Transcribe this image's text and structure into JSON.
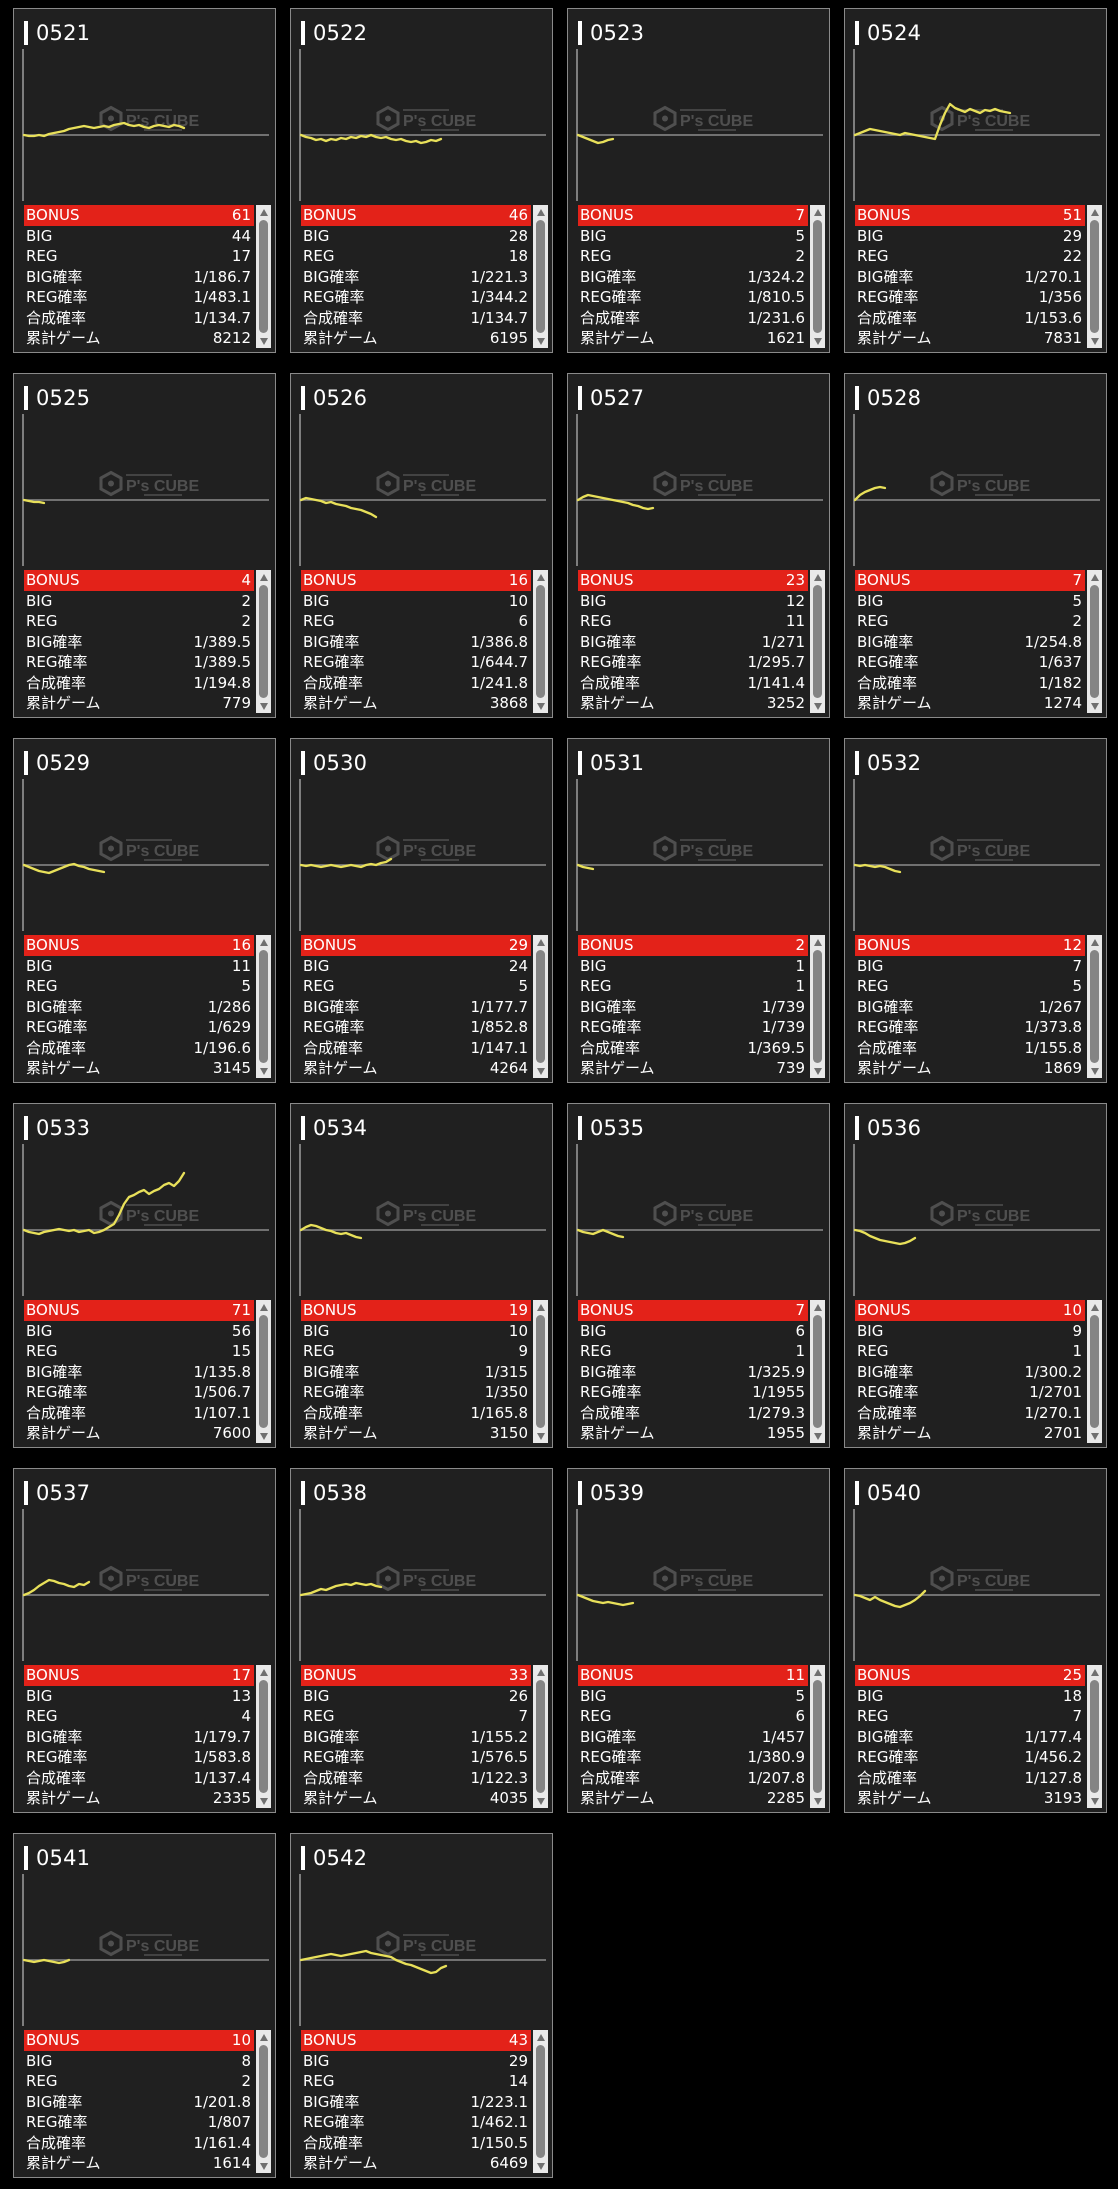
{
  "labels": {
    "bonus": "BONUS",
    "big": "BIG",
    "reg": "REG",
    "big_rate": "BIG確率",
    "reg_rate": "REG確率",
    "combined_rate": "合成確率",
    "total_games": "累計ゲーム"
  },
  "watermark": {
    "brand": "P's CUBE",
    "line_color": "#e8e05a"
  },
  "machines": [
    {
      "id": "0521",
      "bonus": "61",
      "big": "44",
      "reg": "17",
      "big_rate": "1/186.7",
      "reg_rate": "1/483.1",
      "combined_rate": "1/134.7",
      "total_games": "8212",
      "trend": [
        0,
        1,
        1,
        0,
        1,
        -1,
        -2,
        -3,
        -4,
        -6,
        -7,
        -8,
        -9,
        -8,
        -7,
        -8,
        -9,
        -8,
        -10,
        -11,
        -12,
        -10,
        -9,
        -10,
        -8,
        -7,
        -9,
        -10,
        -9,
        -8,
        -10,
        -9,
        -7
      ]
    },
    {
      "id": "0522",
      "bonus": "46",
      "big": "28",
      "reg": "18",
      "big_rate": "1/221.3",
      "reg_rate": "1/344.2",
      "combined_rate": "1/134.7",
      "total_games": "6195",
      "trend": [
        0,
        2,
        3,
        5,
        4,
        6,
        4,
        5,
        3,
        4,
        2,
        3,
        1,
        2,
        0,
        2,
        3,
        2,
        4,
        5,
        4,
        6,
        7,
        6,
        8,
        7,
        5,
        6,
        4
      ]
    },
    {
      "id": "0523",
      "bonus": "7",
      "big": "5",
      "reg": "2",
      "big_rate": "1/324.2",
      "reg_rate": "1/810.5",
      "combined_rate": "1/231.6",
      "total_games": "1621",
      "trend": [
        0,
        2,
        4,
        6,
        8,
        7,
        5,
        4
      ]
    },
    {
      "id": "0524",
      "bonus": "51",
      "big": "29",
      "reg": "22",
      "big_rate": "1/270.1",
      "reg_rate": "1/356",
      "combined_rate": "1/153.6",
      "total_games": "7831",
      "trend": [
        0,
        -2,
        -4,
        -6,
        -5,
        -4,
        -3,
        -2,
        -1,
        0,
        -2,
        -1,
        0,
        1,
        2,
        3,
        4,
        -10,
        -22,
        -31,
        -27,
        -25,
        -23,
        -26,
        -24,
        -22,
        -25,
        -24,
        -26,
        -24,
        -23,
        -22
      ]
    },
    {
      "id": "0525",
      "bonus": "4",
      "big": "2",
      "reg": "2",
      "big_rate": "1/389.5",
      "reg_rate": "1/389.5",
      "combined_rate": "1/194.8",
      "total_games": "779",
      "trend": [
        0,
        1,
        2,
        2,
        3
      ]
    },
    {
      "id": "0526",
      "bonus": "16",
      "big": "10",
      "reg": "6",
      "big_rate": "1/386.8",
      "reg_rate": "1/644.7",
      "combined_rate": "1/241.8",
      "total_games": "3868",
      "trend": [
        0,
        -2,
        -1,
        0,
        1,
        3,
        2,
        4,
        5,
        6,
        8,
        9,
        10,
        12,
        14,
        17
      ]
    },
    {
      "id": "0527",
      "bonus": "23",
      "big": "12",
      "reg": "11",
      "big_rate": "1/271",
      "reg_rate": "1/295.7",
      "combined_rate": "1/141.4",
      "total_games": "3252",
      "trend": [
        0,
        -3,
        -5,
        -4,
        -3,
        -2,
        -1,
        0,
        1,
        2,
        3,
        5,
        6,
        8,
        9,
        8
      ]
    },
    {
      "id": "0528",
      "bonus": "7",
      "big": "5",
      "reg": "2",
      "big_rate": "1/254.8",
      "reg_rate": "1/637",
      "combined_rate": "1/182",
      "total_games": "1274",
      "trend": [
        0,
        -5,
        -8,
        -10,
        -12,
        -13,
        -12
      ]
    },
    {
      "id": "0529",
      "bonus": "16",
      "big": "11",
      "reg": "5",
      "big_rate": "1/286",
      "reg_rate": "1/629",
      "combined_rate": "1/196.6",
      "total_games": "3145",
      "trend": [
        0,
        2,
        4,
        6,
        7,
        8,
        6,
        4,
        2,
        0,
        -1,
        1,
        2,
        4,
        5,
        6,
        7
      ]
    },
    {
      "id": "0530",
      "bonus": "29",
      "big": "24",
      "reg": "5",
      "big_rate": "1/177.7",
      "reg_rate": "1/852.8",
      "combined_rate": "1/147.1",
      "total_games": "4264",
      "trend": [
        0,
        1,
        0,
        1,
        2,
        1,
        0,
        1,
        2,
        1,
        0,
        1,
        2,
        0,
        -1,
        0,
        -2,
        -3,
        -6
      ]
    },
    {
      "id": "0531",
      "bonus": "2",
      "big": "1",
      "reg": "1",
      "big_rate": "1/739",
      "reg_rate": "1/739",
      "combined_rate": "1/369.5",
      "total_games": "739",
      "trend": [
        0,
        2,
        3,
        4
      ]
    },
    {
      "id": "0532",
      "bonus": "12",
      "big": "7",
      "reg": "5",
      "big_rate": "1/267",
      "reg_rate": "1/373.8",
      "combined_rate": "1/155.8",
      "total_games": "1869",
      "trend": [
        0,
        1,
        0,
        1,
        2,
        1,
        2,
        4,
        6,
        7
      ]
    },
    {
      "id": "0533",
      "bonus": "71",
      "big": "56",
      "reg": "15",
      "big_rate": "1/135.8",
      "reg_rate": "1/506.7",
      "combined_rate": "1/107.1",
      "total_games": "7600",
      "trend": [
        0,
        2,
        3,
        4,
        2,
        1,
        0,
        -1,
        0,
        1,
        0,
        2,
        1,
        0,
        3,
        2,
        0,
        -3,
        -6,
        -15,
        -26,
        -33,
        -35,
        -38,
        -40,
        -36,
        -39,
        -41,
        -45,
        -47,
        -44,
        -49,
        -57
      ]
    },
    {
      "id": "0534",
      "bonus": "19",
      "big": "10",
      "reg": "9",
      "big_rate": "1/315",
      "reg_rate": "1/350",
      "combined_rate": "1/165.8",
      "total_games": "3150",
      "trend": [
        0,
        -3,
        -5,
        -4,
        -2,
        0,
        1,
        3,
        4,
        3,
        5,
        7,
        8
      ]
    },
    {
      "id": "0535",
      "bonus": "7",
      "big": "6",
      "reg": "1",
      "big_rate": "1/325.9",
      "reg_rate": "1/1955",
      "combined_rate": "1/279.3",
      "total_games": "1955",
      "trend": [
        0,
        2,
        3,
        4,
        2,
        0,
        2,
        4,
        6,
        7
      ]
    },
    {
      "id": "0536",
      "bonus": "10",
      "big": "9",
      "reg": "1",
      "big_rate": "1/300.2",
      "reg_rate": "1/2701",
      "combined_rate": "1/270.1",
      "total_games": "2701",
      "trend": [
        0,
        1,
        3,
        6,
        8,
        10,
        11,
        12,
        13,
        14,
        13,
        11,
        8
      ]
    },
    {
      "id": "0537",
      "bonus": "17",
      "big": "13",
      "reg": "4",
      "big_rate": "1/179.7",
      "reg_rate": "1/583.8",
      "combined_rate": "1/137.4",
      "total_games": "2335",
      "trend": [
        0,
        -2,
        -5,
        -9,
        -12,
        -15,
        -14,
        -12,
        -11,
        -9,
        -8,
        -11,
        -10,
        -13
      ]
    },
    {
      "id": "0538",
      "bonus": "33",
      "big": "26",
      "reg": "7",
      "big_rate": "1/155.2",
      "reg_rate": "1/576.5",
      "combined_rate": "1/122.3",
      "total_games": "4035",
      "trend": [
        0,
        -1,
        -2,
        -4,
        -6,
        -5,
        -7,
        -9,
        -10,
        -11,
        -10,
        -12,
        -11,
        -10,
        -11,
        -9,
        -8
      ]
    },
    {
      "id": "0539",
      "bonus": "11",
      "big": "5",
      "reg": "6",
      "big_rate": "1/457",
      "reg_rate": "1/380.9",
      "combined_rate": "1/207.8",
      "total_games": "2285",
      "trend": [
        0,
        2,
        4,
        6,
        7,
        8,
        7,
        8,
        9,
        10,
        9,
        8
      ]
    },
    {
      "id": "0540",
      "bonus": "25",
      "big": "18",
      "reg": "7",
      "big_rate": "1/177.4",
      "reg_rate": "1/456.2",
      "combined_rate": "1/127.8",
      "total_games": "3193",
      "trend": [
        0,
        1,
        3,
        5,
        2,
        5,
        7,
        9,
        11,
        12,
        10,
        8,
        5,
        1,
        -4
      ]
    },
    {
      "id": "0541",
      "bonus": "10",
      "big": "8",
      "reg": "2",
      "big_rate": "1/201.8",
      "reg_rate": "1/807",
      "combined_rate": "1/161.4",
      "total_games": "1614",
      "trend": [
        0,
        1,
        2,
        1,
        0,
        1,
        2,
        3,
        2,
        0
      ]
    },
    {
      "id": "0542",
      "bonus": "43",
      "big": "29",
      "reg": "14",
      "big_rate": "1/223.1",
      "reg_rate": "1/462.1",
      "combined_rate": "1/150.5",
      "total_games": "6469",
      "trend": [
        0,
        -1,
        -2,
        -3,
        -4,
        -5,
        -6,
        -5,
        -4,
        -5,
        -6,
        -7,
        -8,
        -9,
        -7,
        -6,
        -5,
        -4,
        -3,
        0,
        2,
        4,
        5,
        7,
        9,
        11,
        13,
        12,
        8,
        6
      ]
    }
  ]
}
